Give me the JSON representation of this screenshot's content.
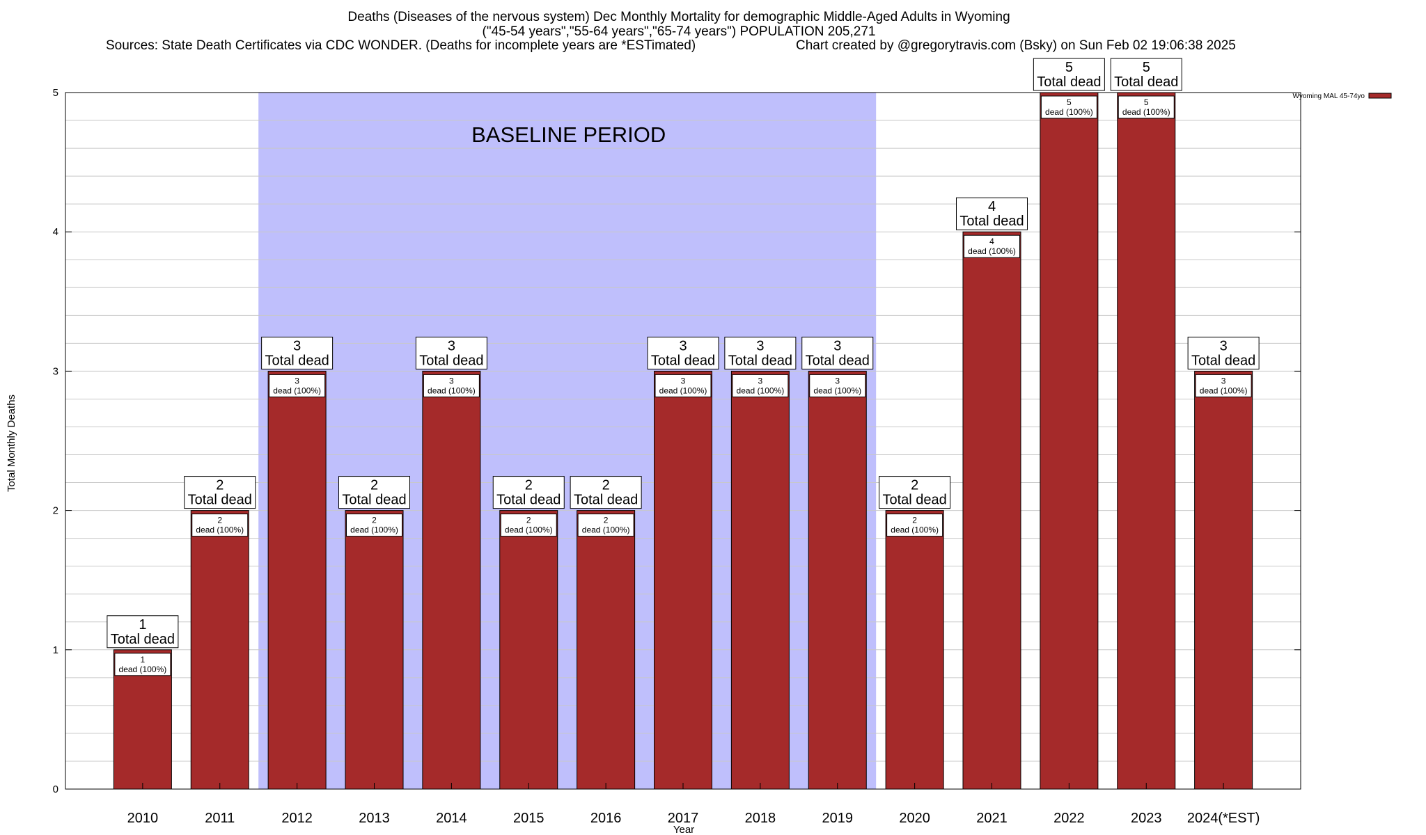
{
  "colors": {
    "bar": "#a52a2a",
    "baseline_band": "#bfbffc",
    "grid": "#c8c8c8",
    "frame": "#000000",
    "label_box": "#ffffff"
  },
  "title": {
    "line1": "Deaths (Diseases of the nervous system) Dec Monthly Mortality for demographic Middle-Aged Adults in Wyoming",
    "line2": "(\"45-54 years\",\"55-64 years\",\"65-74 years\") POPULATION 205,271",
    "sources": "Sources: State Death Certificates via CDC WONDER. (Deaths for incomplete years are *ESTimated)",
    "credit": "Chart created by @gregorytravis.com (Bsky) on Sun Feb 02 19:06:38 2025"
  },
  "chart_data": {
    "type": "bar",
    "categories": [
      "2010",
      "2011",
      "2012",
      "2013",
      "2014",
      "2015",
      "2016",
      "2017",
      "2018",
      "2019",
      "2020",
      "2021",
      "2022",
      "2023",
      "2024(*EST)"
    ],
    "series": [
      {
        "name": "Wyoming MAL 45-74yo",
        "values": [
          1,
          2,
          3,
          2,
          3,
          2,
          2,
          3,
          3,
          3,
          2,
          4,
          5,
          5,
          3
        ]
      }
    ],
    "xlabel": "Year",
    "ylabel": "Total Monthly Deaths",
    "ylim": [
      0,
      5
    ],
    "yticks": [
      0,
      1,
      2,
      3,
      4,
      5
    ],
    "minor_gridlines_per_unit": 5,
    "grid": true,
    "legend_position": "top-right",
    "baseline_band": {
      "label": "BASELINE PERIOD",
      "from": "2012",
      "to": "2019"
    },
    "bar_label_top_suffix": "Total dead",
    "bar_label_inner_suffix": "dead (100%)"
  }
}
